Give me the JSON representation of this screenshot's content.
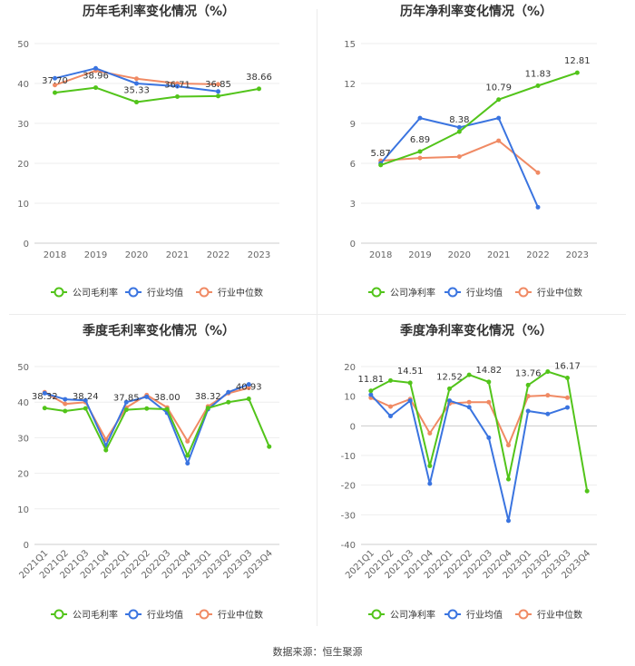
{
  "source": "数据来源：恒生聚源",
  "chart_data": [
    {
      "type": "line",
      "title": "历年毛利率变化情况（%）",
      "categories": [
        "2018",
        "2019",
        "2020",
        "2021",
        "2022",
        "2023"
      ],
      "ylim": [
        0,
        50
      ],
      "yticks": [
        0,
        10,
        20,
        30,
        40,
        50
      ],
      "series": [
        {
          "name": "公司毛利率",
          "color": "#52c41a",
          "values": [
            37.7,
            38.96,
            35.33,
            36.71,
            36.85,
            38.66
          ]
        },
        {
          "name": "行业均值",
          "color": "#3a74e0",
          "values": [
            41.3,
            43.8,
            40.0,
            39.3,
            38.0,
            null
          ]
        },
        {
          "name": "行业中位数",
          "color": "#f08a64",
          "values": [
            39.6,
            43.2,
            41.2,
            40.0,
            39.8,
            null
          ]
        }
      ],
      "labels": [
        {
          "index": 0,
          "text": "37.70"
        },
        {
          "index": 1,
          "text": "38.96"
        },
        {
          "index": 2,
          "text": "35.33"
        },
        {
          "index": 3,
          "text": "36.71"
        },
        {
          "index": 4,
          "text": "36.85"
        },
        {
          "index": 5,
          "text": "38.66"
        }
      ]
    },
    {
      "type": "line",
      "title": "历年净利率变化情况（%）",
      "categories": [
        "2018",
        "2019",
        "2020",
        "2021",
        "2022",
        "2023"
      ],
      "ylim": [
        0,
        15
      ],
      "yticks": [
        0,
        3,
        6,
        9,
        12,
        15
      ],
      "series": [
        {
          "name": "公司净利率",
          "color": "#52c41a",
          "values": [
            5.87,
            6.89,
            8.38,
            10.79,
            11.83,
            12.81
          ]
        },
        {
          "name": "行业均值",
          "color": "#3a74e0",
          "values": [
            6.0,
            9.4,
            8.7,
            9.4,
            2.7,
            null
          ]
        },
        {
          "name": "行业中位数",
          "color": "#f08a64",
          "values": [
            6.2,
            6.4,
            6.5,
            7.7,
            5.3,
            null
          ]
        }
      ],
      "labels": [
        {
          "index": 0,
          "text": "5.87"
        },
        {
          "index": 1,
          "text": "6.89"
        },
        {
          "index": 2,
          "text": "8.38"
        },
        {
          "index": 3,
          "text": "10.79"
        },
        {
          "index": 4,
          "text": "11.83"
        },
        {
          "index": 5,
          "text": "12.81"
        }
      ]
    },
    {
      "type": "line",
      "title": "季度毛利率变化情况（%）",
      "categories": [
        "2021Q1",
        "2021Q2",
        "2021Q3",
        "2021Q4",
        "2022Q1",
        "2022Q2",
        "2022Q3",
        "2022Q4",
        "2023Q1",
        "2023Q2",
        "2023Q3",
        "2023Q4"
      ],
      "ylim": [
        0,
        50
      ],
      "yticks": [
        0,
        10,
        20,
        30,
        40,
        50
      ],
      "series": [
        {
          "name": "公司毛利率",
          "color": "#52c41a",
          "values": [
            38.32,
            37.5,
            38.24,
            26.5,
            37.85,
            38.2,
            38.0,
            25.0,
            38.32,
            40.0,
            40.93,
            27.5
          ]
        },
        {
          "name": "行业均值",
          "color": "#3a74e0",
          "values": [
            42.5,
            40.8,
            40.5,
            27.8,
            40.0,
            41.5,
            37.0,
            22.8,
            38.0,
            42.8,
            45.0,
            null
          ]
        },
        {
          "name": "行业中位数",
          "color": "#f08a64",
          "values": [
            42.8,
            39.5,
            40.0,
            29.5,
            38.5,
            42.0,
            38.5,
            29.0,
            38.8,
            42.5,
            44.0,
            null
          ]
        }
      ],
      "labels": [
        {
          "index": 0,
          "text": "38.32"
        },
        {
          "index": 2,
          "text": "38.24"
        },
        {
          "index": 4,
          "text": "37.85"
        },
        {
          "index": 6,
          "text": "38.00"
        },
        {
          "index": 8,
          "text": "38.32"
        },
        {
          "index": 10,
          "text": "40.93"
        }
      ]
    },
    {
      "type": "line",
      "title": "季度净利率变化情况（%）",
      "categories": [
        "2021Q1",
        "2021Q2",
        "2021Q3",
        "2021Q4",
        "2022Q1",
        "2022Q2",
        "2022Q3",
        "2022Q4",
        "2023Q1",
        "2023Q2",
        "2023Q3",
        "2023Q4"
      ],
      "ylim": [
        -40,
        20
      ],
      "yticks": [
        -40,
        -30,
        -20,
        -10,
        0,
        10,
        20
      ],
      "series": [
        {
          "name": "公司净利率",
          "color": "#52c41a",
          "values": [
            11.81,
            15.3,
            14.51,
            -13.5,
            12.52,
            17.2,
            14.82,
            -18.0,
            13.76,
            18.3,
            16.17,
            -22.0
          ]
        },
        {
          "name": "行业均值",
          "color": "#3a74e0",
          "values": [
            10.5,
            3.3,
            8.5,
            -19.5,
            8.5,
            6.3,
            -4.0,
            -32.0,
            5.0,
            4.0,
            6.2,
            null
          ]
        },
        {
          "name": "行业中位数",
          "color": "#f08a64",
          "values": [
            9.5,
            6.5,
            9.0,
            -2.5,
            7.5,
            8.0,
            8.0,
            -6.5,
            10.0,
            10.3,
            9.5,
            null
          ]
        }
      ],
      "labels": [
        {
          "index": 0,
          "text": "11.81"
        },
        {
          "index": 2,
          "text": "14.51"
        },
        {
          "index": 4,
          "text": "12.52"
        },
        {
          "index": 6,
          "text": "14.82"
        },
        {
          "index": 8,
          "text": "13.76"
        },
        {
          "index": 10,
          "text": "16.17"
        }
      ]
    }
  ]
}
